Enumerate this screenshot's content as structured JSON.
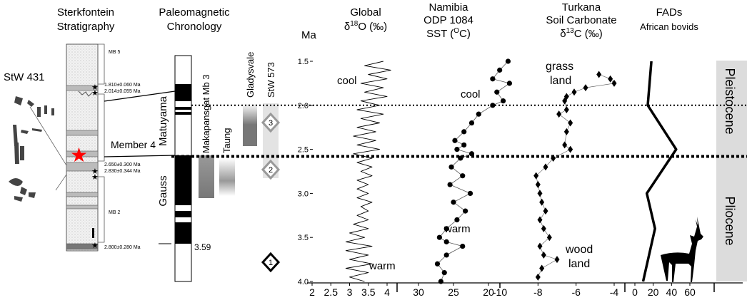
{
  "stratigraphy": {
    "title": [
      "Sterkfontein",
      "Stratigraphy"
    ],
    "specimen": "StW 431",
    "labels": [
      "MB 5",
      "1.810±0.060 Ma",
      "2.014±0.055 Ma",
      "Member 4",
      "2.650±0.300 Ma",
      "2.830±0.344 Ma",
      "MB 2",
      "2.800±0.280 Ma"
    ]
  },
  "paleomagnetism": {
    "title": [
      "Paleomagnetic",
      "Chronology"
    ],
    "chrons": [
      "Matuyama",
      "Gauss"
    ],
    "base_label": "3.59"
  },
  "sites": {
    "names": [
      "Makapansgat Mb 3",
      "Taung",
      "Gladysvale",
      "StW 573"
    ],
    "markers": [
      "3",
      "2",
      "1"
    ]
  },
  "epochs": [
    "Pleistocene",
    "Pliocene"
  ],
  "reference_lines": [
    2.0,
    2.58
  ],
  "chart_data": [
    {
      "type": "line",
      "title": [
        [
          "Global"
        ],
        [
          "δ",
          "18",
          "O (‰)"
        ]
      ],
      "annotations": [
        "cool",
        "warm"
      ],
      "ylabel": "Ma",
      "ylim": [
        1.5,
        4.0
      ],
      "y_reversed": true,
      "yticks": [
        1.5,
        {
          "value": 2,
          "label": "2.0"
        },
        2.5,
        {
          "value": 3,
          "label": "3.0"
        },
        3.5,
        {
          "value": 4,
          "label": "4.0"
        }
      ],
      "xlim": [
        2,
        4
      ],
      "xticks": [
        2,
        2.5,
        3,
        3.5,
        4
      ],
      "marker": "none",
      "color": "#000000",
      "y": [
        1.5,
        1.55,
        1.6,
        1.65,
        1.7,
        1.75,
        1.8,
        1.85,
        1.9,
        1.95,
        2.0,
        2.05,
        2.1,
        2.15,
        2.2,
        2.25,
        2.3,
        2.35,
        2.4,
        2.45,
        2.5,
        2.55,
        2.6,
        2.65,
        2.7,
        2.75,
        2.8,
        2.85,
        2.9,
        2.95,
        3.0,
        3.05,
        3.1,
        3.15,
        3.2,
        3.25,
        3.3,
        3.35,
        3.4,
        3.45,
        3.5,
        3.55,
        3.6,
        3.65,
        3.7,
        3.75,
        3.8,
        3.85,
        3.9,
        3.95,
        4.0
      ],
      "values": [
        3.9,
        3.4,
        4.1,
        3.5,
        4.0,
        3.3,
        3.9,
        3.4,
        4.0,
        3.3,
        3.8,
        3.2,
        3.9,
        3.3,
        3.8,
        3.2,
        3.7,
        3.1,
        3.7,
        3.2,
        3.8,
        3.1,
        3.6,
        3.2,
        3.6,
        3.3,
        3.6,
        3.2,
        3.5,
        3.2,
        3.5,
        3.2,
        3.6,
        3.3,
        3.5,
        3.2,
        3.5,
        3.1,
        3.5,
        3.0,
        3.4,
        2.9,
        3.6,
        2.9,
        3.5,
        3.0,
        3.6,
        2.9,
        3.5,
        3.0,
        3.4
      ]
    },
    {
      "type": "line",
      "title": [
        [
          "Namibia"
        ],
        [
          "ODP 1084"
        ],
        [
          "SST (",
          "O",
          "C)"
        ]
      ],
      "annotations": [
        "cool",
        "warm"
      ],
      "ylim": [
        1.5,
        4.0
      ],
      "y_reversed": true,
      "xlim": [
        30,
        20
      ],
      "xticks": [
        30,
        25,
        20
      ],
      "marker": "circle",
      "color": "#000000",
      "y": [
        1.5,
        1.6,
        1.7,
        1.75,
        1.85,
        1.95,
        2.0,
        2.1,
        2.2,
        2.3,
        2.4,
        2.45,
        2.5,
        2.55,
        2.6,
        2.7,
        2.8,
        2.9,
        3.0,
        3.1,
        3.2,
        3.3,
        3.4,
        3.5,
        3.55,
        3.6,
        3.7,
        3.8,
        3.9,
        4.0
      ],
      "values": [
        17.2,
        18.4,
        19.4,
        17.0,
        18.8,
        17.9,
        19.4,
        21.4,
        22.4,
        23.5,
        24.8,
        23.5,
        24.5,
        22.4,
        24.0,
        25.3,
        23.7,
        25.5,
        22.6,
        25.0,
        23.3,
        24.5,
        26.0,
        27.0,
        26.0,
        23.7,
        26.0,
        27.3,
        26.3,
        26.8
      ]
    },
    {
      "type": "line",
      "title": [
        [
          "Turkana"
        ],
        [
          "Soil Carbonate"
        ],
        [
          "δ",
          "13",
          "C (‰)"
        ]
      ],
      "annotations": [
        [
          "grass",
          "land"
        ],
        [
          "wood",
          "land"
        ]
      ],
      "ylim": [
        1.5,
        4.0
      ],
      "y_reversed": true,
      "xlim": [
        -10,
        -4
      ],
      "xticks": [
        -10,
        -8,
        -6,
        -4
      ],
      "marker": "diamond",
      "color": "#000000",
      "y": [
        1.65,
        1.7,
        1.75,
        1.8,
        1.85,
        1.9,
        1.95,
        2.05,
        2.1,
        2.2,
        2.3,
        2.45,
        2.5,
        2.6,
        2.7,
        2.8,
        2.9,
        3.0,
        3.1,
        3.2,
        3.3,
        3.4,
        3.5,
        3.6,
        3.7,
        3.75,
        3.85,
        3.95
      ],
      "values": [
        -4.8,
        -4.2,
        -4.0,
        -5.5,
        -6.1,
        -6.5,
        -6.6,
        -6.5,
        -6.9,
        -6.3,
        -6.5,
        -6.6,
        -6.3,
        -7.2,
        -7.6,
        -8.1,
        -8.0,
        -7.9,
        -7.8,
        -7.6,
        -7.9,
        -7.7,
        -7.4,
        -7.9,
        -7.7,
        -7.0,
        -7.8,
        -8.0
      ]
    },
    {
      "type": "line",
      "title": [
        [
          "FADs"
        ],
        [
          "African bovids"
        ]
      ],
      "ylim": [
        1.5,
        4.0
      ],
      "y_reversed": true,
      "xlim": [
        0,
        60
      ],
      "xticks": [
        0,
        20,
        40,
        60
      ],
      "marker": "none",
      "color": "#000000",
      "y": [
        1.5,
        2.0,
        2.5,
        3.0,
        3.4,
        4.0
      ],
      "values": [
        18,
        14,
        45,
        13,
        22,
        9
      ]
    }
  ]
}
